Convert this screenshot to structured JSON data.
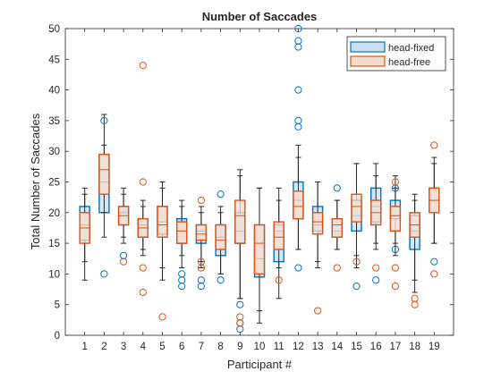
{
  "chart_data": {
    "type": "box",
    "title": "Number of Saccades",
    "xlabel": "Participant #",
    "ylabel": "Total Number of Saccades",
    "ylim": [
      0,
      50
    ],
    "yticks": [
      0,
      5,
      10,
      15,
      20,
      25,
      30,
      35,
      40,
      45,
      50
    ],
    "categories": [
      "1",
      "2",
      "3",
      "4",
      "5",
      "6",
      "7",
      "8",
      "9",
      "10",
      "11",
      "12",
      "13",
      "14",
      "15",
      "16",
      "17",
      "18",
      "19"
    ],
    "legend_position": "top-right",
    "series": [
      {
        "name": "head-fixed",
        "color": "#0072BD",
        "fill": "#c8e0f2",
        "boxes": [
          {
            "whislo": 9,
            "q1": 15.5,
            "med": 18,
            "q3": 21,
            "whishi": 24,
            "fliers": []
          },
          {
            "whislo": 16,
            "q1": 20,
            "med": 25,
            "q3": 29.5,
            "whishi": 36,
            "fliers": [
              10,
              35
            ]
          },
          {
            "whislo": 16,
            "q1": 18,
            "med": 20,
            "q3": 21,
            "whishi": 23,
            "fliers": [
              13
            ]
          },
          {
            "whislo": 14,
            "q1": 16,
            "med": 18,
            "q3": 19,
            "whishi": 22,
            "fliers": []
          },
          {
            "whislo": 9,
            "q1": 16.5,
            "med": 18.5,
            "q3": 21,
            "whishi": 24,
            "fliers": []
          },
          {
            "whislo": 11,
            "q1": 15,
            "med": 17,
            "q3": 19,
            "whishi": 22,
            "fliers": [
              8,
              9,
              10
            ]
          },
          {
            "whislo": 11,
            "q1": 15,
            "med": 17,
            "q3": 18,
            "whishi": 21,
            "fliers": [
              8,
              9
            ]
          },
          {
            "whislo": 10,
            "q1": 13,
            "med": 16,
            "q3": 18,
            "whishi": 21,
            "fliers": [
              9,
              23
            ]
          },
          {
            "whislo": 6,
            "q1": 15,
            "med": 17,
            "q3": 20,
            "whishi": 26,
            "fliers": [
              1,
              2,
              5
            ]
          },
          {
            "whislo": 2,
            "q1": 9.5,
            "med": 12.5,
            "q3": 18,
            "whishi": 24,
            "fliers": []
          },
          {
            "whislo": 6,
            "q1": 12,
            "med": 17,
            "q3": 18,
            "whishi": 22,
            "fliers": []
          },
          {
            "whislo": 14,
            "q1": 19,
            "med": 22,
            "q3": 25,
            "whishi": 31,
            "fliers": [
              11,
              34,
              35,
              40,
              47,
              48,
              50
            ]
          },
          {
            "whislo": 12,
            "q1": 17,
            "med": 18,
            "q3": 21,
            "whishi": 25,
            "fliers": []
          },
          {
            "whislo": 14,
            "q1": 16,
            "med": 17,
            "q3": 19,
            "whishi": 22,
            "fliers": [
              24
            ]
          },
          {
            "whislo": 11,
            "q1": 17,
            "med": 19.5,
            "q3": 22,
            "whishi": 28,
            "fliers": [
              8
            ]
          },
          {
            "whislo": 14,
            "q1": 18.5,
            "med": 21,
            "q3": 24,
            "whishi": 28,
            "fliers": [
              9
            ]
          },
          {
            "whislo": 15,
            "q1": 19,
            "med": 21,
            "q3": 22,
            "whishi": 26,
            "fliers": [
              14,
              24
            ]
          },
          {
            "whislo": 7,
            "q1": 14,
            "med": 17,
            "q3": 19.5,
            "whishi": 23,
            "fliers": []
          },
          {
            "whislo": 15,
            "q1": 20,
            "med": 22,
            "q3": 24,
            "whishi": 29,
            "fliers": [
              12
            ]
          }
        ]
      },
      {
        "name": "head-free",
        "color": "#D95319",
        "fill": "#f7dccc",
        "boxes": [
          {
            "whislo": 12,
            "q1": 15,
            "med": 17.5,
            "q3": 20,
            "whishi": 23,
            "fliers": []
          },
          {
            "whislo": 20,
            "q1": 23,
            "med": 27,
            "q3": 29.5,
            "whishi": 31,
            "fliers": []
          },
          {
            "whislo": 15,
            "q1": 18,
            "med": 19.5,
            "q3": 21,
            "whishi": 24,
            "fliers": [
              12
            ]
          },
          {
            "whislo": 13,
            "q1": 16,
            "med": 17.5,
            "q3": 19,
            "whishi": 21,
            "fliers": [
              7,
              11,
              25,
              44
            ]
          },
          {
            "whislo": 11,
            "q1": 16,
            "med": 18,
            "q3": 21,
            "whishi": 25,
            "fliers": [
              3
            ]
          },
          {
            "whislo": 13,
            "q1": 15,
            "med": 17,
            "q3": 18.5,
            "whishi": 21,
            "fliers": []
          },
          {
            "whislo": 12,
            "q1": 15.5,
            "med": 16.5,
            "q3": 18,
            "whishi": 20,
            "fliers": [
              11,
              12,
              22
            ]
          },
          {
            "whislo": 10,
            "q1": 14,
            "med": 15.5,
            "q3": 18,
            "whishi": 20,
            "fliers": []
          },
          {
            "whislo": 6,
            "q1": 15,
            "med": 19.5,
            "q3": 22,
            "whishi": 27,
            "fliers": [
              2,
              3
            ]
          },
          {
            "whislo": 4,
            "q1": 10,
            "med": 15,
            "q3": 18,
            "whishi": 24,
            "fliers": []
          },
          {
            "whislo": 11,
            "q1": 14,
            "med": 16,
            "q3": 18.5,
            "whishi": 24,
            "fliers": [
              9
            ]
          },
          {
            "whislo": 14,
            "q1": 19,
            "med": 21,
            "q3": 23.5,
            "whishi": 29,
            "fliers": []
          },
          {
            "whislo": 11,
            "q1": 16.5,
            "med": 18.5,
            "q3": 20,
            "whishi": 25,
            "fliers": [
              4
            ]
          },
          {
            "whislo": 14,
            "q1": 16,
            "med": 18,
            "q3": 19,
            "whishi": 22,
            "fliers": [
              11
            ]
          },
          {
            "whislo": 13,
            "q1": 18.5,
            "med": 21,
            "q3": 23,
            "whishi": 28,
            "fliers": [
              12
            ]
          },
          {
            "whislo": 15,
            "q1": 18,
            "med": 20,
            "q3": 22,
            "whishi": 26,
            "fliers": [
              11
            ]
          },
          {
            "whislo": 13,
            "q1": 17,
            "med": 19.5,
            "q3": 21,
            "whishi": 24,
            "fliers": [
              8,
              11,
              25
            ]
          },
          {
            "whislo": 9,
            "q1": 16,
            "med": 18,
            "q3": 20,
            "whishi": 22,
            "fliers": [
              5,
              6
            ]
          },
          {
            "whislo": 15,
            "q1": 20,
            "med": 22,
            "q3": 24,
            "whishi": 28,
            "fliers": [
              10,
              31
            ]
          }
        ]
      }
    ]
  }
}
